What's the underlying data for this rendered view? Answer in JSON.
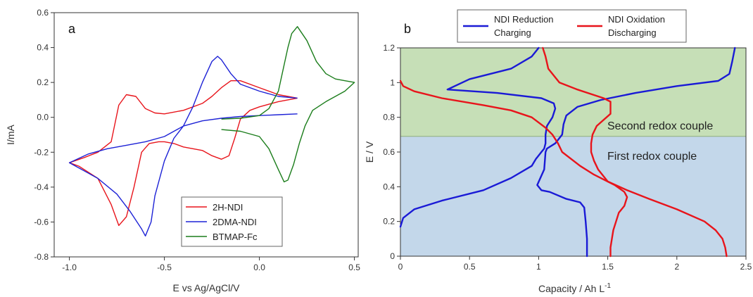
{
  "chart_data": [
    {
      "type": "line",
      "panel_label": "a",
      "xlabel": "E vs Ag/AgCl/V",
      "ylabel": "I/mA",
      "xlim": [
        -1.08,
        0.52
      ],
      "ylim": [
        -0.8,
        0.6
      ],
      "x_ticks": [
        -1.0,
        -0.5,
        0.0,
        0.5
      ],
      "x_tick_labels": [
        "-1.0",
        "-0.5",
        "0.0",
        "0.5"
      ],
      "y_ticks": [
        -0.8,
        -0.6,
        -0.4,
        -0.2,
        0.0,
        0.2,
        0.4,
        0.6
      ],
      "y_tick_labels": [
        "-0.8",
        "-0.6",
        "-0.4",
        "-0.2",
        "0.0",
        "0.2",
        "0.4",
        "0.6"
      ],
      "legend_position": "bottom-right",
      "series": [
        {
          "name": "2H-NDI",
          "color": "#e8141b",
          "x": [
            0.2,
            0.1,
            0.0,
            -0.1,
            -0.15,
            -0.2,
            -0.25,
            -0.3,
            -0.4,
            -0.5,
            -0.55,
            -0.6,
            -0.65,
            -0.7,
            -0.74,
            -0.78,
            -0.85,
            -0.92,
            -1.0,
            -0.95,
            -0.85,
            -0.78,
            -0.74,
            -0.7,
            -0.66,
            -0.62,
            -0.58,
            -0.53,
            -0.5,
            -0.45,
            -0.4,
            -0.3,
            -0.25,
            -0.2,
            -0.16,
            -0.13,
            -0.1,
            -0.05,
            0.0,
            0.1,
            0.2
          ],
          "y": [
            0.11,
            0.13,
            0.17,
            0.21,
            0.21,
            0.17,
            0.12,
            0.08,
            0.04,
            0.02,
            0.025,
            0.05,
            0.12,
            0.13,
            0.07,
            -0.14,
            -0.2,
            -0.23,
            -0.26,
            -0.28,
            -0.35,
            -0.5,
            -0.62,
            -0.57,
            -0.4,
            -0.2,
            -0.15,
            -0.14,
            -0.14,
            -0.15,
            -0.17,
            -0.19,
            -0.22,
            -0.24,
            -0.22,
            -0.12,
            -0.01,
            0.04,
            0.06,
            0.09,
            0.11
          ]
        },
        {
          "name": "2DMA-NDI",
          "color": "#1d22d6",
          "x": [
            0.2,
            0.1,
            0.0,
            -0.1,
            -0.15,
            -0.2,
            -0.22,
            -0.25,
            -0.3,
            -0.35,
            -0.4,
            -0.5,
            -0.6,
            -0.7,
            -0.8,
            -0.9,
            -1.0,
            -0.95,
            -0.85,
            -0.75,
            -0.68,
            -0.62,
            -0.6,
            -0.57,
            -0.55,
            -0.5,
            -0.45,
            -0.4,
            -0.3,
            -0.2,
            -0.1,
            0.0,
            0.1,
            0.2
          ],
          "y": [
            0.11,
            0.12,
            0.15,
            0.19,
            0.25,
            0.33,
            0.35,
            0.32,
            0.2,
            0.06,
            -0.05,
            -0.11,
            -0.14,
            -0.16,
            -0.18,
            -0.21,
            -0.26,
            -0.29,
            -0.35,
            -0.44,
            -0.54,
            -0.64,
            -0.68,
            -0.6,
            -0.45,
            -0.25,
            -0.12,
            -0.05,
            -0.02,
            -0.005,
            0.005,
            0.01,
            0.015,
            0.02
          ]
        },
        {
          "name": "BTMAP-Fc",
          "color": "#1b7d1b",
          "x": [
            -0.2,
            -0.1,
            0.0,
            0.05,
            0.1,
            0.12,
            0.15,
            0.17,
            0.2,
            0.25,
            0.3,
            0.35,
            0.4,
            0.45,
            0.5,
            0.45,
            0.35,
            0.28,
            0.24,
            0.21,
            0.18,
            0.15,
            0.13,
            0.1,
            0.05,
            0.0,
            -0.1,
            -0.2
          ],
          "y": [
            -0.01,
            -0.005,
            0.01,
            0.05,
            0.15,
            0.25,
            0.4,
            0.48,
            0.52,
            0.44,
            0.32,
            0.25,
            0.22,
            0.21,
            0.2,
            0.15,
            0.09,
            0.04,
            -0.05,
            -0.15,
            -0.27,
            -0.36,
            -0.37,
            -0.3,
            -0.18,
            -0.11,
            -0.08,
            -0.07
          ]
        }
      ]
    },
    {
      "type": "line",
      "panel_label": "b",
      "xlabel": "Capacity / Ah L",
      "xlabel_superscript": "-1",
      "ylabel": "E / V",
      "xlim": [
        0,
        2.5
      ],
      "ylim": [
        0,
        1.2
      ],
      "x_ticks": [
        0,
        0.5,
        1,
        1.5,
        2,
        2.5
      ],
      "x_tick_labels": [
        "0",
        "0.5",
        "1",
        "1.5",
        "2",
        "2.5"
      ],
      "y_ticks": [
        0,
        0.2,
        0.4,
        0.6,
        0.8,
        1,
        1.2
      ],
      "y_tick_labels": [
        "0",
        "0.2",
        "0.4",
        "0.6",
        "0.8",
        "1",
        "1.2"
      ],
      "regions": [
        {
          "label": "Second redox couple",
          "y_range": [
            0.69,
            1.2
          ],
          "color": "#c6dfb7"
        },
        {
          "label": "First redox couple",
          "y_range": [
            0,
            0.69
          ],
          "color": "#c3d7ea"
        }
      ],
      "legend_position": "top",
      "series": [
        {
          "name": "NDI Reduction Charging",
          "legend_lines": [
            "NDI Reduction",
            "Charging"
          ],
          "color": "#1a1ad6",
          "x": [
            0.0,
            0.02,
            0.1,
            0.3,
            0.6,
            0.8,
            0.95,
            0.98,
            1.02,
            1.04,
            1.05,
            1.05,
            1.06,
            1.1,
            1.12,
            1.11,
            1.02,
            0.7,
            0.34,
            0.5,
            0.8,
            0.95,
            1.0
          ],
          "y": [
            0.17,
            0.22,
            0.27,
            0.32,
            0.38,
            0.45,
            0.52,
            0.56,
            0.6,
            0.62,
            0.65,
            0.7,
            0.75,
            0.8,
            0.85,
            0.88,
            0.91,
            0.94,
            0.96,
            1.02,
            1.08,
            1.15,
            1.2
          ]
        },
        {
          "name": "NDI Reduction Charging",
          "color": "#1a1ad6",
          "x": [
            1.35,
            1.35,
            1.34,
            1.33,
            1.3,
            1.2,
            1.08,
            1.02,
            0.99,
            1.04,
            1.05,
            1.06,
            1.12,
            1.17,
            1.18,
            1.2,
            1.28,
            1.45,
            1.7,
            2.0,
            2.3,
            2.38,
            2.4,
            2.42
          ],
          "y": [
            0.0,
            0.1,
            0.2,
            0.28,
            0.31,
            0.33,
            0.37,
            0.38,
            0.41,
            0.5,
            0.6,
            0.62,
            0.65,
            0.7,
            0.76,
            0.81,
            0.86,
            0.9,
            0.94,
            0.98,
            1.01,
            1.05,
            1.12,
            1.2
          ]
        },
        {
          "name": "NDI Oxidation Discharging",
          "color": "#e8141b",
          "x": [
            0.0,
            0.02,
            0.1,
            0.3,
            0.6,
            0.8,
            0.95,
            1.05,
            1.1,
            1.14,
            1.17,
            1.3,
            1.4,
            1.55,
            1.62,
            1.64,
            1.62,
            1.58,
            1.56,
            1.54,
            1.53,
            1.52,
            1.52
          ],
          "y": [
            1.01,
            0.98,
            0.95,
            0.91,
            0.87,
            0.84,
            0.8,
            0.74,
            0.7,
            0.65,
            0.6,
            0.52,
            0.47,
            0.41,
            0.37,
            0.34,
            0.29,
            0.25,
            0.2,
            0.15,
            0.1,
            0.05,
            0.0
          ]
        },
        {
          "name": "NDI Oxidation Discharging",
          "color": "#e8141b",
          "x": [
            2.36,
            2.35,
            2.33,
            2.28,
            2.2,
            2.0,
            1.8,
            1.64,
            1.5,
            1.43,
            1.4,
            1.38,
            1.38,
            1.39,
            1.42,
            1.52,
            1.52,
            1.47,
            1.28,
            1.15,
            1.07,
            1.05,
            1.03
          ],
          "y": [
            0.0,
            0.05,
            0.1,
            0.15,
            0.2,
            0.27,
            0.33,
            0.38,
            0.43,
            0.5,
            0.55,
            0.6,
            0.65,
            0.7,
            0.75,
            0.82,
            0.89,
            0.91,
            0.96,
            1.0,
            1.08,
            1.15,
            1.2
          ]
        }
      ]
    }
  ]
}
